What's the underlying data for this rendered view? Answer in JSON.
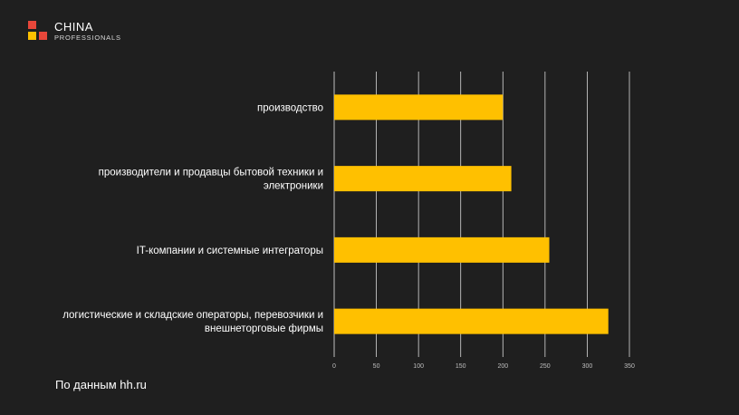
{
  "logo": {
    "brand": "CHINA",
    "sub": "PROFESSIONALS",
    "colors": {
      "red": "#e8473a",
      "yellow": "#ffc000"
    }
  },
  "source_note": "По данным hh.ru",
  "colors": {
    "background": "#1f1f1f",
    "bar": "#ffc000",
    "grid": "#d9d9d9",
    "label": "#ffffff",
    "tick": "#bfbfbf"
  },
  "chart_data": {
    "type": "bar",
    "orientation": "horizontal",
    "categories": [
      [
        "производство"
      ],
      [
        "производители и продавцы бытовой техники и",
        "электроники"
      ],
      [
        "IT-компании и системные интеграторы"
      ],
      [
        "логистические и складские операторы, перевозчики и",
        "внешнеторговые фирмы"
      ]
    ],
    "values": [
      200,
      210,
      255,
      325
    ],
    "xlim": [
      0,
      350
    ],
    "xticks": [
      0,
      50,
      100,
      150,
      200,
      250,
      300,
      350
    ],
    "grid": true,
    "legend": "none"
  }
}
